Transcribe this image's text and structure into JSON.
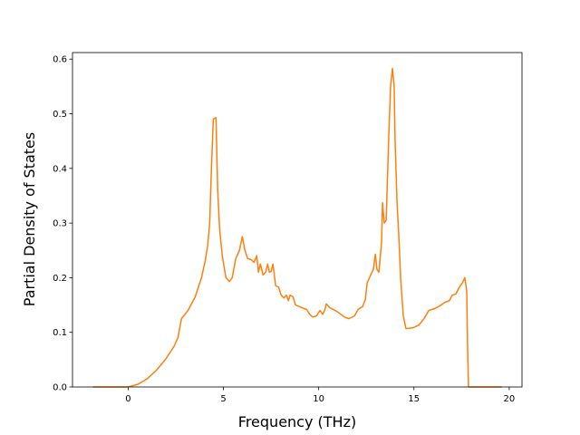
{
  "chart_data": {
    "type": "line",
    "xlabel": "Frequency (THz)",
    "ylabel": "Partial Density of States",
    "x": [
      -1.85,
      0,
      0.52,
      1.0,
      1.47,
      1.95,
      2.42,
      2.61,
      2.8,
      3.14,
      3.52,
      3.85,
      4.04,
      4.18,
      4.28,
      4.37,
      4.47,
      4.61,
      4.7,
      4.8,
      4.94,
      5.13,
      5.32,
      5.46,
      5.65,
      5.84,
      5.99,
      6.13,
      6.27,
      6.46,
      6.6,
      6.75,
      6.84,
      6.94,
      7.08,
      7.22,
      7.32,
      7.41,
      7.51,
      7.6,
      7.74,
      7.89,
      8.03,
      8.17,
      8.31,
      8.41,
      8.5,
      8.65,
      8.79,
      9.12,
      9.36,
      9.55,
      9.69,
      9.88,
      10.07,
      10.21,
      10.31,
      10.4,
      10.59,
      10.97,
      11.35,
      11.59,
      11.88,
      12.07,
      12.3,
      12.45,
      12.54,
      12.73,
      12.87,
      12.97,
      13.06,
      13.16,
      13.3,
      13.35,
      13.44,
      13.54,
      13.68,
      13.77,
      13.87,
      13.96,
      14.01,
      14.11,
      14.2,
      14.3,
      14.44,
      14.58,
      14.92,
      15.25,
      15.53,
      15.77,
      16.06,
      16.34,
      16.63,
      16.86,
      17.01,
      17.2,
      17.34,
      17.53,
      17.67,
      17.77,
      17.81,
      17.86,
      19.62
    ],
    "values": [
      0,
      0,
      0.005,
      0.015,
      0.03,
      0.05,
      0.075,
      0.09,
      0.125,
      0.14,
      0.165,
      0.2,
      0.23,
      0.26,
      0.3,
      0.4,
      0.49,
      0.493,
      0.36,
      0.29,
      0.24,
      0.2,
      0.193,
      0.2,
      0.235,
      0.25,
      0.275,
      0.25,
      0.235,
      0.233,
      0.228,
      0.24,
      0.21,
      0.225,
      0.205,
      0.21,
      0.225,
      0.21,
      0.212,
      0.225,
      0.185,
      0.183,
      0.168,
      0.163,
      0.168,
      0.158,
      0.168,
      0.165,
      0.15,
      0.145,
      0.142,
      0.132,
      0.128,
      0.13,
      0.14,
      0.133,
      0.14,
      0.152,
      0.145,
      0.138,
      0.128,
      0.125,
      0.13,
      0.142,
      0.147,
      0.16,
      0.19,
      0.205,
      0.215,
      0.243,
      0.215,
      0.21,
      0.265,
      0.337,
      0.3,
      0.305,
      0.46,
      0.548,
      0.583,
      0.55,
      0.45,
      0.34,
      0.28,
      0.2,
      0.13,
      0.107,
      0.108,
      0.113,
      0.125,
      0.14,
      0.143,
      0.148,
      0.155,
      0.158,
      0.168,
      0.17,
      0.18,
      0.19,
      0.2,
      0.175,
      0.08,
      0,
      0
    ],
    "color": "#ff7f0e",
    "xlim": [
      -2.92,
      20.67
    ],
    "xticks": [
      0,
      5,
      10,
      15,
      20
    ],
    "ylim": [
      0,
      0.612
    ],
    "yticks": [
      {
        "value": 0,
        "label": "0.0"
      },
      0.1,
      0.2,
      0.3,
      0.4,
      0.5,
      0.6
    ]
  }
}
